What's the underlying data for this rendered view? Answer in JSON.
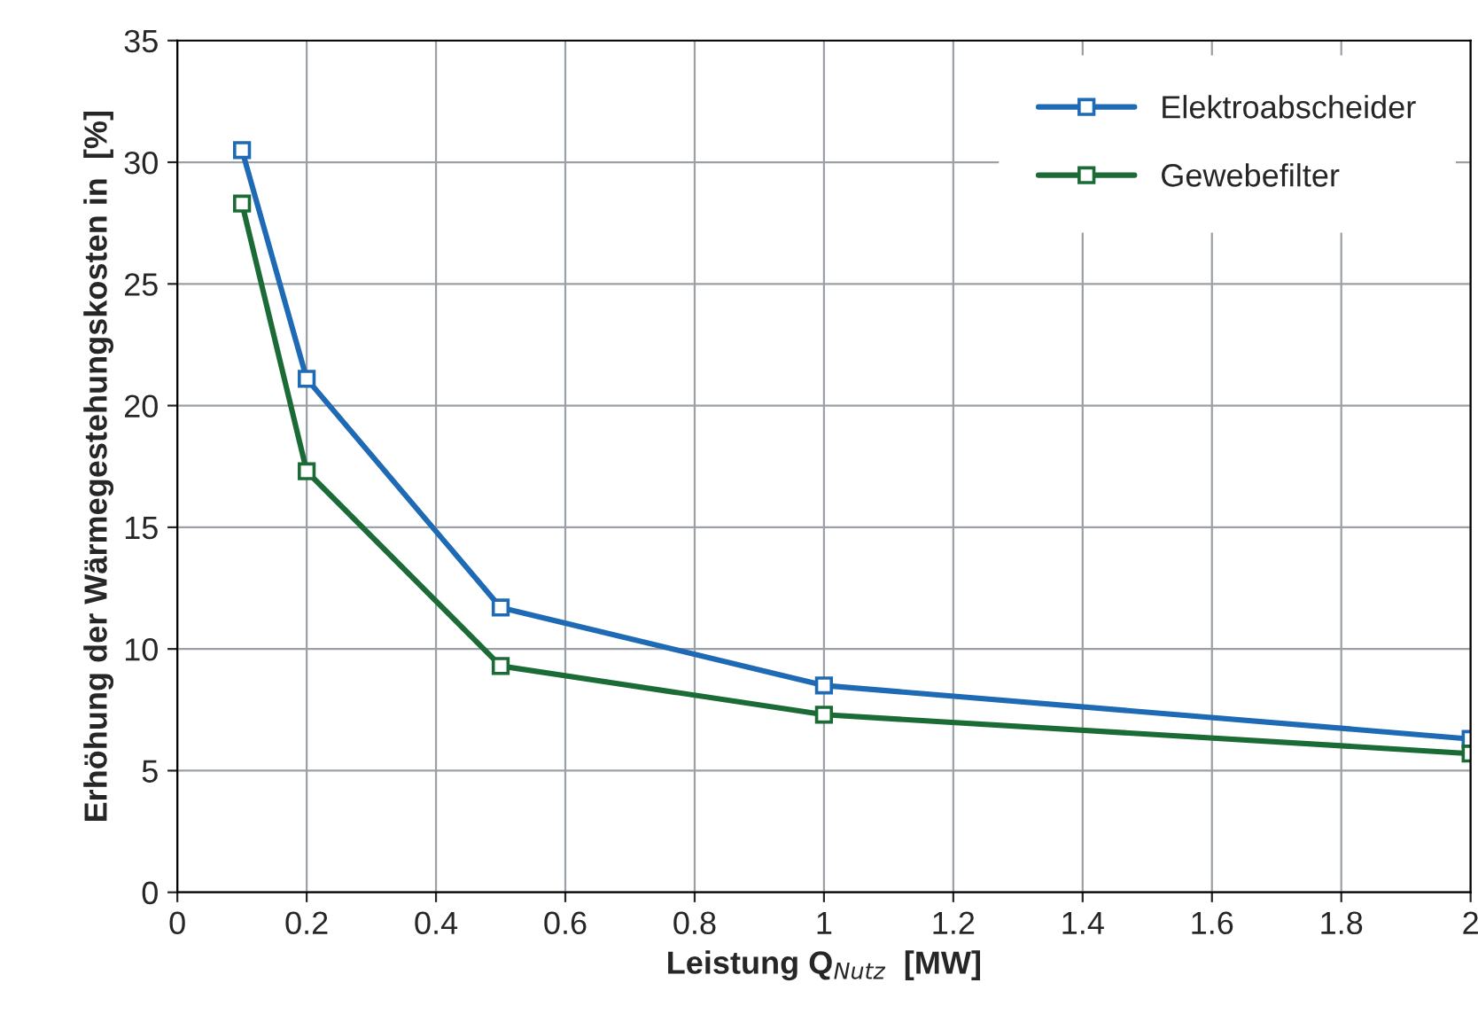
{
  "chart_data": {
    "type": "line",
    "xlabel": "Leistung Q$_{Nutz}$  [MW]",
    "ylabel": "Erhöhung der Wärmegestehungskosten in  [%]",
    "x": [
      0.1,
      0.2,
      0.5,
      1,
      2
    ],
    "series": [
      {
        "name": "Elektroabscheider",
        "color": "#1f6ab5",
        "values": [
          30.5,
          21.1,
          11.7,
          8.5,
          6.3
        ]
      },
      {
        "name": "Gewebefilter",
        "color": "#1a6b35",
        "values": [
          28.3,
          17.3,
          9.3,
          7.3,
          5.7
        ]
      }
    ],
    "xlim": [
      0,
      2
    ],
    "xticks": [
      0,
      0.2,
      0.4,
      0.6,
      0.8,
      1,
      1.2,
      1.4,
      1.6,
      1.8,
      2
    ],
    "ylim": [
      0,
      35
    ],
    "yticks": [
      0,
      5,
      10,
      15,
      20,
      25,
      30,
      35
    ],
    "grid": true,
    "legend": "top right",
    "marker": "square",
    "line_style": "solid"
  }
}
